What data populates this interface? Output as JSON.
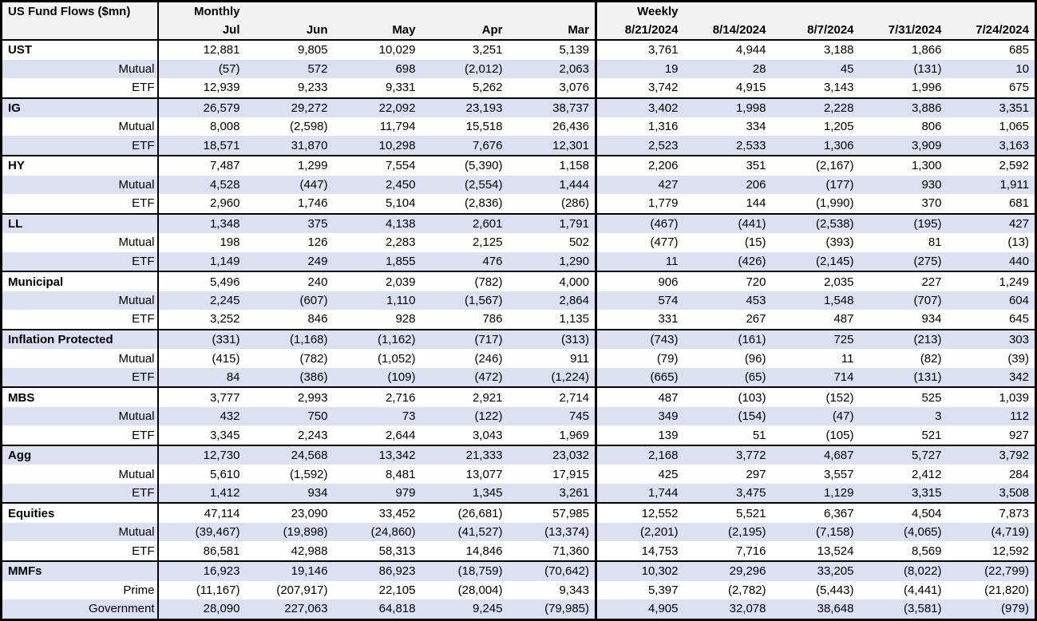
{
  "colors": {
    "shaded_row": "#dbe0f2",
    "header_bg": "#f2f2f2",
    "border": "#000000",
    "text": "#000000"
  },
  "chart_data": {
    "type": "table",
    "title": "US Fund Flows ($mn)",
    "layout": {
      "negative_format": "parentheses",
      "row_shading": "alternating",
      "grid": "group-borders"
    },
    "column_groups": [
      {
        "label": "Monthly",
        "columns": [
          "Jul",
          "Jun",
          "May",
          "Apr",
          "Mar"
        ]
      },
      {
        "label": "Weekly",
        "columns": [
          "8/21/2024",
          "8/14/2024",
          "8/7/2024",
          "7/31/2024",
          "7/24/2024"
        ]
      }
    ],
    "rows": [
      {
        "label": "UST",
        "kind": "group",
        "values": [
          "12,881",
          "9,805",
          "10,029",
          "3,251",
          "5,139",
          "3,761",
          "4,944",
          "3,188",
          "1,866",
          "685"
        ]
      },
      {
        "label": "Mutual",
        "kind": "sub",
        "values": [
          "(57)",
          "572",
          "698",
          "(2,012)",
          "2,063",
          "19",
          "28",
          "45",
          "(131)",
          "10"
        ]
      },
      {
        "label": "ETF",
        "kind": "sub",
        "values": [
          "12,939",
          "9,233",
          "9,331",
          "5,262",
          "3,076",
          "3,742",
          "4,915",
          "3,143",
          "1,996",
          "675"
        ]
      },
      {
        "label": "IG",
        "kind": "group",
        "values": [
          "26,579",
          "29,272",
          "22,092",
          "23,193",
          "38,737",
          "3,402",
          "1,998",
          "2,228",
          "3,886",
          "3,351"
        ]
      },
      {
        "label": "Mutual",
        "kind": "sub",
        "values": [
          "8,008",
          "(2,598)",
          "11,794",
          "15,518",
          "26,436",
          "1,316",
          "334",
          "1,205",
          "806",
          "1,065"
        ]
      },
      {
        "label": "ETF",
        "kind": "sub",
        "values": [
          "18,571",
          "31,870",
          "10,298",
          "7,676",
          "12,301",
          "2,523",
          "2,533",
          "1,306",
          "3,909",
          "3,163"
        ]
      },
      {
        "label": "HY",
        "kind": "group",
        "values": [
          "7,487",
          "1,299",
          "7,554",
          "(5,390)",
          "1,158",
          "2,206",
          "351",
          "(2,167)",
          "1,300",
          "2,592"
        ]
      },
      {
        "label": "Mutual",
        "kind": "sub",
        "values": [
          "4,528",
          "(447)",
          "2,450",
          "(2,554)",
          "1,444",
          "427",
          "206",
          "(177)",
          "930",
          "1,911"
        ]
      },
      {
        "label": "ETF",
        "kind": "sub",
        "values": [
          "2,960",
          "1,746",
          "5,104",
          "(2,836)",
          "(286)",
          "1,779",
          "144",
          "(1,990)",
          "370",
          "681"
        ]
      },
      {
        "label": "LL",
        "kind": "group",
        "values": [
          "1,348",
          "375",
          "4,138",
          "2,601",
          "1,791",
          "(467)",
          "(441)",
          "(2,538)",
          "(195)",
          "427"
        ]
      },
      {
        "label": "Mutual",
        "kind": "sub",
        "values": [
          "198",
          "126",
          "2,283",
          "2,125",
          "502",
          "(477)",
          "(15)",
          "(393)",
          "81",
          "(13)"
        ]
      },
      {
        "label": "ETF",
        "kind": "sub",
        "values": [
          "1,149",
          "249",
          "1,855",
          "476",
          "1,290",
          "11",
          "(426)",
          "(2,145)",
          "(275)",
          "440"
        ]
      },
      {
        "label": "Municipal",
        "kind": "group",
        "values": [
          "5,496",
          "240",
          "2,039",
          "(782)",
          "4,000",
          "906",
          "720",
          "2,035",
          "227",
          "1,249"
        ]
      },
      {
        "label": "Mutual",
        "kind": "sub",
        "values": [
          "2,245",
          "(607)",
          "1,110",
          "(1,567)",
          "2,864",
          "574",
          "453",
          "1,548",
          "(707)",
          "604"
        ]
      },
      {
        "label": "ETF",
        "kind": "sub",
        "values": [
          "3,252",
          "846",
          "928",
          "786",
          "1,135",
          "331",
          "267",
          "487",
          "934",
          "645"
        ]
      },
      {
        "label": "Inflation Protected",
        "kind": "group",
        "values": [
          "(331)",
          "(1,168)",
          "(1,162)",
          "(717)",
          "(313)",
          "(743)",
          "(161)",
          "725",
          "(213)",
          "303"
        ]
      },
      {
        "label": "Mutual",
        "kind": "sub",
        "values": [
          "(415)",
          "(782)",
          "(1,052)",
          "(246)",
          "911",
          "(79)",
          "(96)",
          "11",
          "(82)",
          "(39)"
        ]
      },
      {
        "label": "ETF",
        "kind": "sub",
        "values": [
          "84",
          "(386)",
          "(109)",
          "(472)",
          "(1,224)",
          "(665)",
          "(65)",
          "714",
          "(131)",
          "342"
        ]
      },
      {
        "label": "MBS",
        "kind": "group",
        "values": [
          "3,777",
          "2,993",
          "2,716",
          "2,921",
          "2,714",
          "487",
          "(103)",
          "(152)",
          "525",
          "1,039"
        ]
      },
      {
        "label": "Mutual",
        "kind": "sub",
        "values": [
          "432",
          "750",
          "73",
          "(122)",
          "745",
          "349",
          "(154)",
          "(47)",
          "3",
          "112"
        ]
      },
      {
        "label": "ETF",
        "kind": "sub",
        "values": [
          "3,345",
          "2,243",
          "2,644",
          "3,043",
          "1,969",
          "139",
          "51",
          "(105)",
          "521",
          "927"
        ]
      },
      {
        "label": "Agg",
        "kind": "group",
        "values": [
          "12,730",
          "24,568",
          "13,342",
          "21,333",
          "23,032",
          "2,168",
          "3,772",
          "4,687",
          "5,727",
          "3,792"
        ]
      },
      {
        "label": "Mutual",
        "kind": "sub",
        "values": [
          "5,610",
          "(1,592)",
          "8,481",
          "13,077",
          "17,915",
          "425",
          "297",
          "3,557",
          "2,412",
          "284"
        ]
      },
      {
        "label": "ETF",
        "kind": "sub",
        "values": [
          "1,412",
          "934",
          "979",
          "1,345",
          "3,261",
          "1,744",
          "3,475",
          "1,129",
          "3,315",
          "3,508"
        ]
      },
      {
        "label": "Equities",
        "kind": "group",
        "values": [
          "47,114",
          "23,090",
          "33,452",
          "(26,681)",
          "57,985",
          "12,552",
          "5,521",
          "6,367",
          "4,504",
          "7,873"
        ]
      },
      {
        "label": "Mutual",
        "kind": "sub",
        "values": [
          "(39,467)",
          "(19,898)",
          "(24,860)",
          "(41,527)",
          "(13,374)",
          "(2,201)",
          "(2,195)",
          "(7,158)",
          "(4,065)",
          "(4,719)"
        ]
      },
      {
        "label": "ETF",
        "kind": "sub",
        "values": [
          "86,581",
          "42,988",
          "58,313",
          "14,846",
          "71,360",
          "14,753",
          "7,716",
          "13,524",
          "8,569",
          "12,592"
        ]
      },
      {
        "label": "MMFs",
        "kind": "group",
        "values": [
          "16,923",
          "19,146",
          "86,923",
          "(18,759)",
          "(70,642)",
          "10,302",
          "29,296",
          "33,205",
          "(8,022)",
          "(22,799)"
        ]
      },
      {
        "label": "Prime",
        "kind": "sub",
        "values": [
          "(11,167)",
          "(207,917)",
          "22,105",
          "(28,004)",
          "9,343",
          "5,397",
          "(2,782)",
          "(5,443)",
          "(4,441)",
          "(21,820)"
        ]
      },
      {
        "label": "Government",
        "kind": "sub",
        "values": [
          "28,090",
          "227,063",
          "64,818",
          "9,245",
          "(79,985)",
          "4,905",
          "32,078",
          "38,648",
          "(3,581)",
          "(979)"
        ]
      }
    ]
  }
}
